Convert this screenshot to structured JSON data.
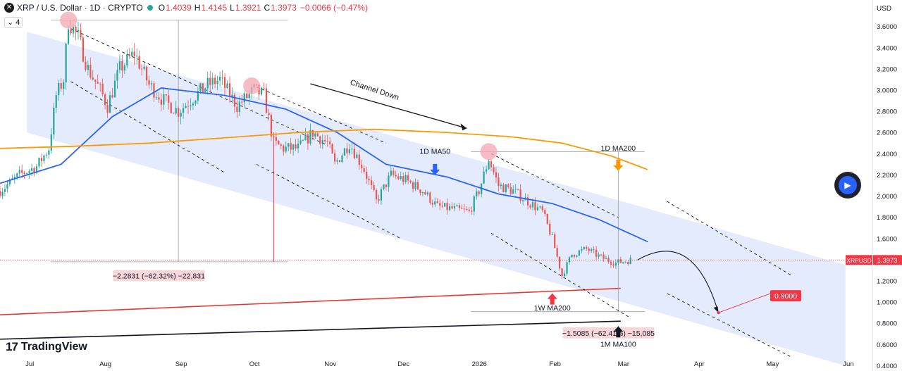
{
  "header": {
    "logo_glyph": "✕",
    "symbol": "XRP / U.S. Dollar · 1D · CRYPTO",
    "open_label": "O",
    "open": "1.4039",
    "high_label": "H",
    "high": "1.4145",
    "low_label": "L",
    "low": "1.3921",
    "close_label": "C",
    "close": "1.3973",
    "change": "−0.0066 (−0.47%)",
    "indicator_count": "4",
    "indicator_caret": "⌄"
  },
  "brand": {
    "mark": "17",
    "name": "TradingView"
  },
  "play_icon": "▶",
  "chart_data": {
    "type": "candlestick",
    "axis_unit": "USD",
    "y_range": [
      0.35,
      3.85
    ],
    "y_ticks": [
      "3.6000",
      "3.4000",
      "3.2000",
      "3.0000",
      "2.8000",
      "2.6000",
      "2.4000",
      "2.2000",
      "2.0000",
      "1.8000",
      "1.6000",
      "1.4000",
      "1.2000",
      "1.0000",
      "0.8000",
      "0.6000",
      "0.4000"
    ],
    "y_tick_values": [
      3.6,
      3.4,
      3.2,
      3.0,
      2.8,
      2.6,
      2.4,
      2.2,
      2.0,
      1.8,
      1.6,
      1.4,
      1.2,
      1.0,
      0.8,
      0.6,
      0.4
    ],
    "x_ticks": [
      "Jul",
      "Aug",
      "Sep",
      "Oct",
      "Nov",
      "Dec",
      "2026",
      "Feb",
      "Mar",
      "Apr",
      "May",
      "Jun"
    ],
    "x_tick_dates": [
      "2025-07-01",
      "2025-08-01",
      "2025-09-01",
      "2025-10-01",
      "2025-11-01",
      "2025-12-01",
      "2026-01-01",
      "2026-02-01",
      "2026-03-01",
      "2026-04-01",
      "2026-05-01",
      "2026-06-01"
    ],
    "price_label": "XRPUSD",
    "last_price": 1.3973,
    "last_price_text": "1.3973",
    "target_price": 0.9,
    "target_text": "0.9000",
    "target_date": "2026-04-10",
    "price_path": [
      {
        "d": "2025-06-20",
        "v": 2.05
      },
      {
        "d": "2025-06-28",
        "v": 2.2
      },
      {
        "d": "2025-07-05",
        "v": 2.28
      },
      {
        "d": "2025-07-10",
        "v": 2.45
      },
      {
        "d": "2025-07-13",
        "v": 2.95
      },
      {
        "d": "2025-07-16",
        "v": 3.1
      },
      {
        "d": "2025-07-18",
        "v": 3.65
      },
      {
        "d": "2025-07-22",
        "v": 3.5
      },
      {
        "d": "2025-07-26",
        "v": 3.2
      },
      {
        "d": "2025-07-31",
        "v": 3.0
      },
      {
        "d": "2025-08-03",
        "v": 2.85
      },
      {
        "d": "2025-08-08",
        "v": 3.2
      },
      {
        "d": "2025-08-14",
        "v": 3.35
      },
      {
        "d": "2025-08-20",
        "v": 3.05
      },
      {
        "d": "2025-08-26",
        "v": 2.9
      },
      {
        "d": "2025-09-01",
        "v": 2.8
      },
      {
        "d": "2025-09-08",
        "v": 2.95
      },
      {
        "d": "2025-09-13",
        "v": 3.05
      },
      {
        "d": "2025-09-18",
        "v": 3.1
      },
      {
        "d": "2025-09-25",
        "v": 2.85
      },
      {
        "d": "2025-10-02",
        "v": 3.0
      },
      {
        "d": "2025-10-06",
        "v": 2.95
      },
      {
        "d": "2025-10-10",
        "v": 2.5
      },
      {
        "d": "2025-10-14",
        "v": 2.45
      },
      {
        "d": "2025-10-20",
        "v": 2.45
      },
      {
        "d": "2025-10-26",
        "v": 2.6
      },
      {
        "d": "2025-11-01",
        "v": 2.5
      },
      {
        "d": "2025-11-04",
        "v": 2.3
      },
      {
        "d": "2025-11-10",
        "v": 2.5
      },
      {
        "d": "2025-11-16",
        "v": 2.25
      },
      {
        "d": "2025-11-21",
        "v": 1.95
      },
      {
        "d": "2025-11-27",
        "v": 2.2
      },
      {
        "d": "2025-12-03",
        "v": 2.15
      },
      {
        "d": "2025-12-10",
        "v": 2.05
      },
      {
        "d": "2025-12-16",
        "v": 1.9
      },
      {
        "d": "2025-12-22",
        "v": 1.88
      },
      {
        "d": "2025-12-29",
        "v": 1.85
      },
      {
        "d": "2026-01-02",
        "v": 2.05
      },
      {
        "d": "2026-01-06",
        "v": 2.35
      },
      {
        "d": "2026-01-10",
        "v": 2.1
      },
      {
        "d": "2026-01-16",
        "v": 2.05
      },
      {
        "d": "2026-01-22",
        "v": 1.95
      },
      {
        "d": "2026-01-28",
        "v": 1.85
      },
      {
        "d": "2026-02-01",
        "v": 1.6
      },
      {
        "d": "2026-02-05",
        "v": 1.25
      },
      {
        "d": "2026-02-09",
        "v": 1.45
      },
      {
        "d": "2026-02-15",
        "v": 1.5
      },
      {
        "d": "2026-02-21",
        "v": 1.42
      },
      {
        "d": "2026-02-27",
        "v": 1.37
      },
      {
        "d": "2026-03-05",
        "v": 1.3973
      }
    ],
    "series": [
      {
        "name": "1D MA50",
        "color": "#2962ff",
        "points": [
          {
            "d": "2025-06-20",
            "v": 2.12
          },
          {
            "d": "2025-07-15",
            "v": 2.3
          },
          {
            "d": "2025-08-05",
            "v": 2.75
          },
          {
            "d": "2025-08-25",
            "v": 3.02
          },
          {
            "d": "2025-09-20",
            "v": 2.95
          },
          {
            "d": "2025-10-15",
            "v": 2.82
          },
          {
            "d": "2025-11-05",
            "v": 2.6
          },
          {
            "d": "2025-11-25",
            "v": 2.3
          },
          {
            "d": "2025-12-20",
            "v": 2.18
          },
          {
            "d": "2026-01-10",
            "v": 2.02
          },
          {
            "d": "2026-02-01",
            "v": 1.93
          },
          {
            "d": "2026-02-20",
            "v": 1.78
          },
          {
            "d": "2026-03-12",
            "v": 1.57
          }
        ]
      },
      {
        "name": "1D MA200",
        "color": "#ff9800",
        "points": [
          {
            "d": "2025-06-20",
            "v": 2.45
          },
          {
            "d": "2025-07-20",
            "v": 2.47
          },
          {
            "d": "2025-08-20",
            "v": 2.5
          },
          {
            "d": "2025-09-20",
            "v": 2.55
          },
          {
            "d": "2025-10-20",
            "v": 2.6
          },
          {
            "d": "2025-11-20",
            "v": 2.63
          },
          {
            "d": "2025-12-20",
            "v": 2.6
          },
          {
            "d": "2026-01-15",
            "v": 2.56
          },
          {
            "d": "2026-02-05",
            "v": 2.5
          },
          {
            "d": "2026-02-25",
            "v": 2.38
          },
          {
            "d": "2026-03-12",
            "v": 2.25
          }
        ]
      },
      {
        "name": "1W MA200",
        "color": "#e53935",
        "points": [
          {
            "d": "2025-06-20",
            "v": 0.88
          },
          {
            "d": "2026-03-01",
            "v": 1.13
          }
        ]
      },
      {
        "name": "1M MA100",
        "color": "#131722",
        "points": [
          {
            "d": "2025-06-20",
            "v": 0.65
          },
          {
            "d": "2026-03-01",
            "v": 0.82
          }
        ]
      }
    ],
    "channel": {
      "upper": [
        {
          "d": "2025-07-01",
          "v": 3.55
        },
        {
          "d": "2026-06-01",
          "v": 1.35
        }
      ],
      "lower": [
        {
          "d": "2025-07-01",
          "v": 2.6
        },
        {
          "d": "2026-06-01",
          "v": 0.4
        }
      ]
    },
    "dashed_lines": [
      [
        {
          "d": "2025-07-19",
          "v": 3.58
        },
        {
          "d": "2025-11-01",
          "v": 2.48
        }
      ],
      [
        {
          "d": "2025-07-19",
          "v": 3.08
        },
        {
          "d": "2025-09-20",
          "v": 2.22
        }
      ],
      [
        {
          "d": "2025-10-03",
          "v": 3.03
        },
        {
          "d": "2025-11-25",
          "v": 2.5
        }
      ],
      [
        {
          "d": "2025-10-03",
          "v": 2.3
        },
        {
          "d": "2025-12-01",
          "v": 1.6
        }
      ],
      [
        {
          "d": "2026-01-07",
          "v": 2.4
        },
        {
          "d": "2026-02-28",
          "v": 1.8
        }
      ],
      [
        {
          "d": "2026-01-07",
          "v": 1.65
        },
        {
          "d": "2026-03-05",
          "v": 0.85
        }
      ],
      [
        {
          "d": "2026-03-20",
          "v": 1.95
        },
        {
          "d": "2026-05-10",
          "v": 1.25
        }
      ],
      [
        {
          "d": "2026-03-20",
          "v": 1.08
        },
        {
          "d": "2026-05-10",
          "v": 0.48
        }
      ]
    ],
    "peak_circles": [
      {
        "d": "2025-07-18",
        "v": 3.66
      },
      {
        "d": "2025-10-01",
        "v": 3.04
      },
      {
        "d": "2026-01-06",
        "v": 2.42
      }
    ],
    "measures": [
      {
        "text": "−2.2831 (−62.32%) −22,831",
        "from_d": "2025-07-18",
        "to_d": "2025-10-10",
        "top": 3.66,
        "bottom": 1.38,
        "vline_d": "2025-09-01",
        "label_d": "2025-08-24",
        "label_v": 1.25
      },
      {
        "text": "−1.5085 (−62.41%) −15,085",
        "from_d": "2026-01-06",
        "to_d": "2026-03-05",
        "top": 2.42,
        "bottom": 0.91,
        "vline_d": "2026-02-28",
        "label_d": "2026-02-24",
        "label_v": 0.71
      }
    ],
    "wick_spike": {
      "d": "2025-10-10",
      "top": 2.6,
      "bottom": 1.38
    },
    "annotations": [
      {
        "text": "Channel Down",
        "d": "2025-11-20",
        "v": 2.98,
        "angle": 18
      },
      {
        "text": "1D MA50",
        "d": "2025-12-15",
        "v": 2.4
      },
      {
        "text": "1D MA200",
        "d": "2026-02-28",
        "v": 2.43
      },
      {
        "text": "1W MA200",
        "d": "2026-02-01",
        "v": 0.92
      },
      {
        "text": "1M MA100",
        "d": "2026-02-28",
        "v": 0.58
      }
    ],
    "arrows": [
      {
        "name": "ma50-arrow",
        "color": "#2962ff",
        "dir": "down",
        "d": "2025-12-15",
        "v": 2.25
      },
      {
        "name": "ma200-1d-arrow",
        "color": "#ff9800",
        "dir": "down",
        "d": "2026-02-28",
        "v": 2.29
      },
      {
        "name": "ma200-1w-arrow",
        "color": "#f23645",
        "dir": "up",
        "d": "2026-02-01",
        "v": 1.03
      },
      {
        "name": "ma100-1m-arrow",
        "color": "#131722",
        "dir": "up",
        "d": "2026-02-28",
        "v": 0.72
      }
    ]
  }
}
